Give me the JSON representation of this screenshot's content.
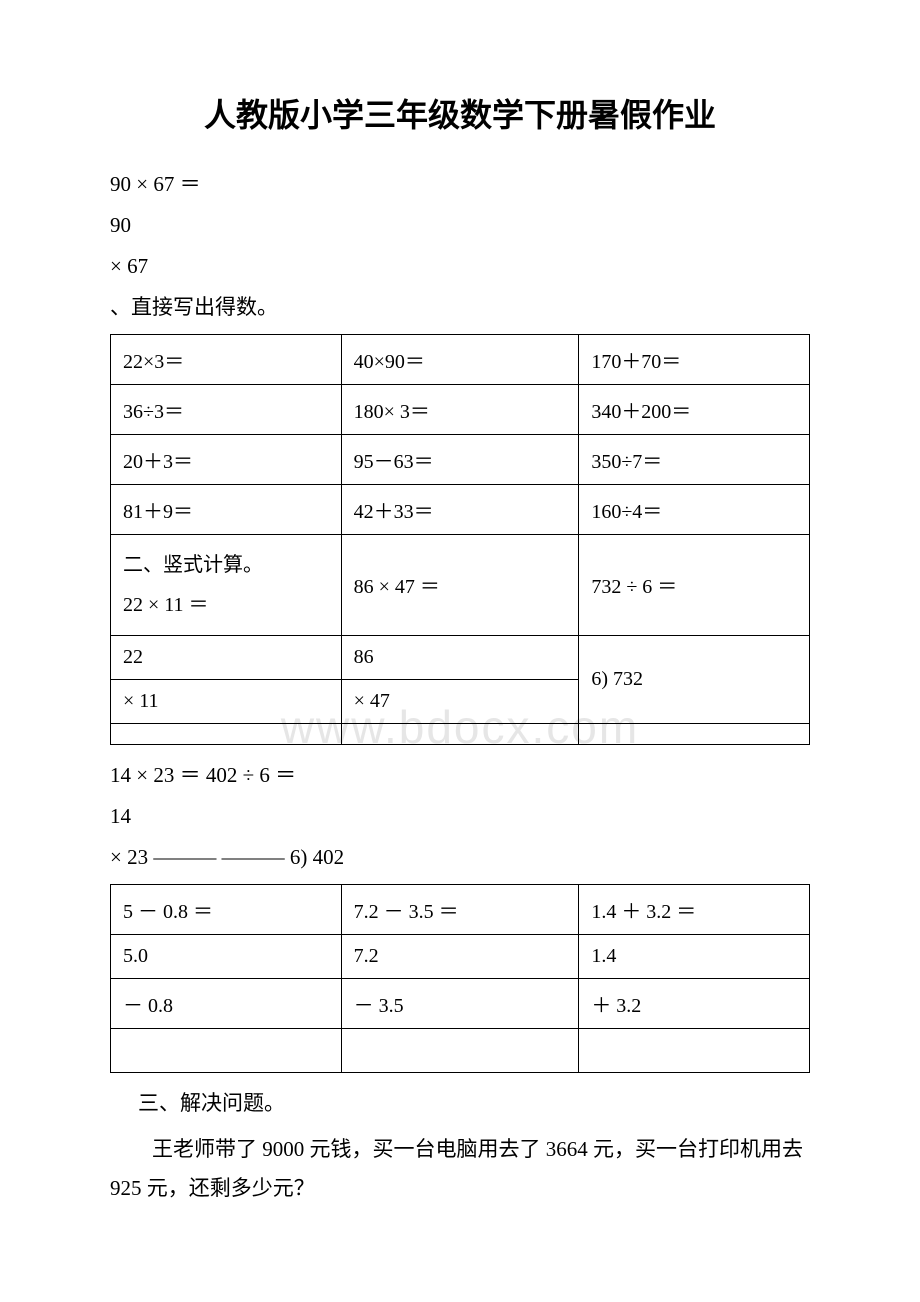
{
  "title": "人教版小学三年级数学下册暑假作业",
  "pre": {
    "l1": "90 × 67 ＝",
    "l2": "90",
    "l3": "× 67",
    "l4": "、直接写出得数。"
  },
  "table1": {
    "r1": {
      "c1": "22×3＝",
      "c2": "40×90＝",
      "c3": "170＋70＝"
    },
    "r2": {
      "c1": "36÷3＝",
      "c2": "180× 3＝",
      "c3": "340＋200＝"
    },
    "r3": {
      "c1": "20＋3＝",
      "c2": "95－63＝",
      "c3": "350÷7＝"
    },
    "r4": {
      "c1": "81＋9＝",
      "c2": "42＋33＝",
      "c3": "160÷4＝"
    },
    "r5": {
      "c1a": "二、竖式计算。",
      "c1b": "22 × 11 ＝",
      "c2": "86 × 47 ＝",
      "c3": "732 ÷ 6 ＝"
    },
    "r6": {
      "c1": "22",
      "c2": "86",
      "c3": ""
    },
    "r7": {
      "c1": "× 11",
      "c2": "× 47",
      "c3": "6) 732"
    },
    "r8": {
      "c1": "",
      "c2": "",
      "c3": ""
    }
  },
  "mid": {
    "l1": "14 × 23 ＝ 402 ÷ 6 ＝",
    "l2": "14",
    "l3": "× 23 ——— ——— 6) 402"
  },
  "table2": {
    "r1": {
      "c1": "5 － 0.8 ＝",
      "c2": "7.2 － 3.5 ＝",
      "c3": "1.4 ＋ 3.2 ＝"
    },
    "r2": {
      "c1": "5.0",
      "c2": "7.2",
      "c3": "1.4"
    },
    "r3": {
      "c1": "－ 0.8",
      "c2": "－ 3.5",
      "c3": "＋ 3.2"
    },
    "r4": {
      "c1": "",
      "c2": "",
      "c3": ""
    }
  },
  "section3": {
    "heading": "三、解决问题。",
    "problem": "王老师带了 9000 元钱，买一台电脑用去了 3664 元，买一台打印机用去 925 元，还剩多少元？"
  },
  "watermark": "www.bdocx.com"
}
